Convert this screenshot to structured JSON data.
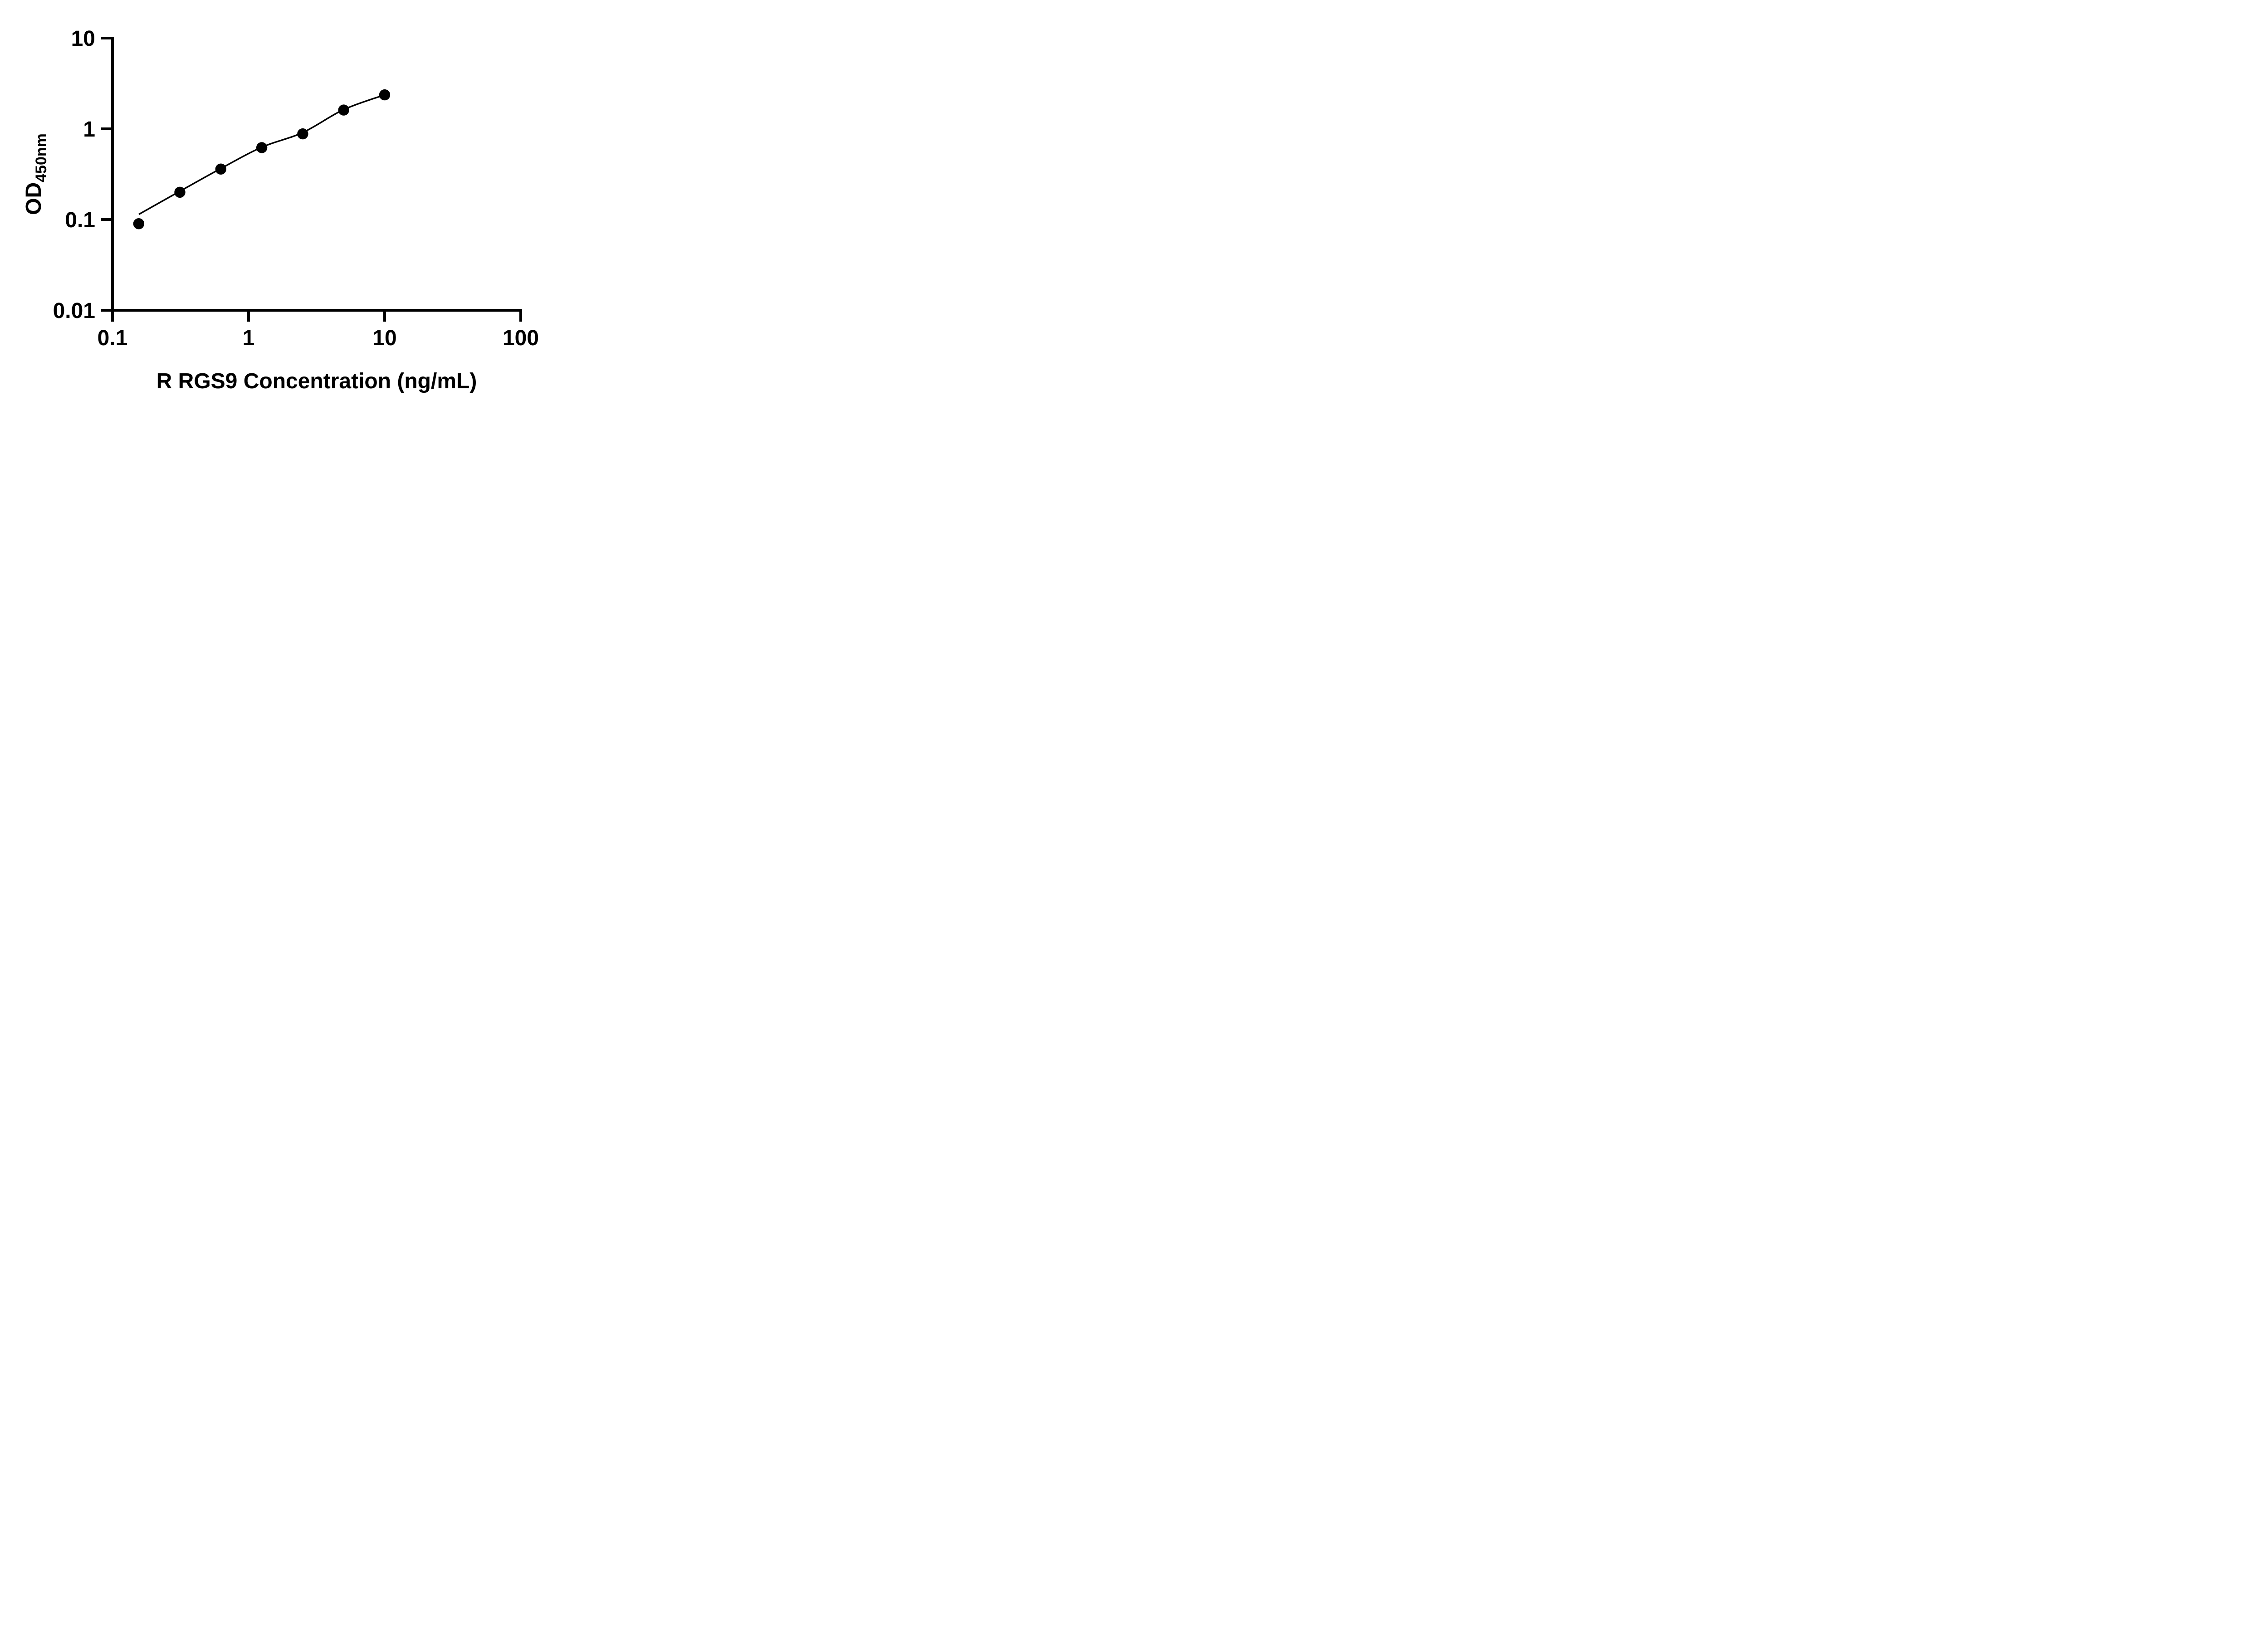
{
  "colors": {
    "ink": "#000000",
    "background": "#ffffff"
  },
  "chart_data": {
    "type": "scatter",
    "title": "",
    "xlabel": "R RGS9 Concentration (ng/mL)",
    "ylabel": {
      "main": "OD",
      "sub": "450nm"
    },
    "x_scale": "log",
    "y_scale": "log",
    "xlim": [
      0.1,
      100
    ],
    "ylim": [
      0.01,
      10
    ],
    "x_ticks": {
      "values": [
        0.1,
        1,
        10,
        100
      ],
      "labels": [
        "0.1",
        "1",
        "10",
        "100"
      ]
    },
    "y_ticks": {
      "values": [
        10,
        1,
        0.1,
        0.01
      ],
      "labels": [
        "10",
        "1",
        "0.1",
        "0.01"
      ]
    },
    "grid": false,
    "legend": null,
    "series": [
      {
        "marker": "filled-circle",
        "color": "#000000",
        "x": [
          0.156,
          0.3125,
          0.625,
          1.25,
          2.5,
          5,
          10
        ],
        "y": [
          0.09,
          0.2,
          0.36,
          0.62,
          0.88,
          1.61,
          2.37
        ]
      }
    ],
    "fit_curve": {
      "color": "#000000",
      "points": [
        [
          0.156,
          0.114
        ],
        [
          0.3125,
          0.205
        ],
        [
          0.625,
          0.365
        ],
        [
          1.25,
          0.627
        ],
        [
          2.5,
          0.91
        ],
        [
          5,
          1.63
        ],
        [
          10,
          2.37
        ]
      ]
    }
  }
}
